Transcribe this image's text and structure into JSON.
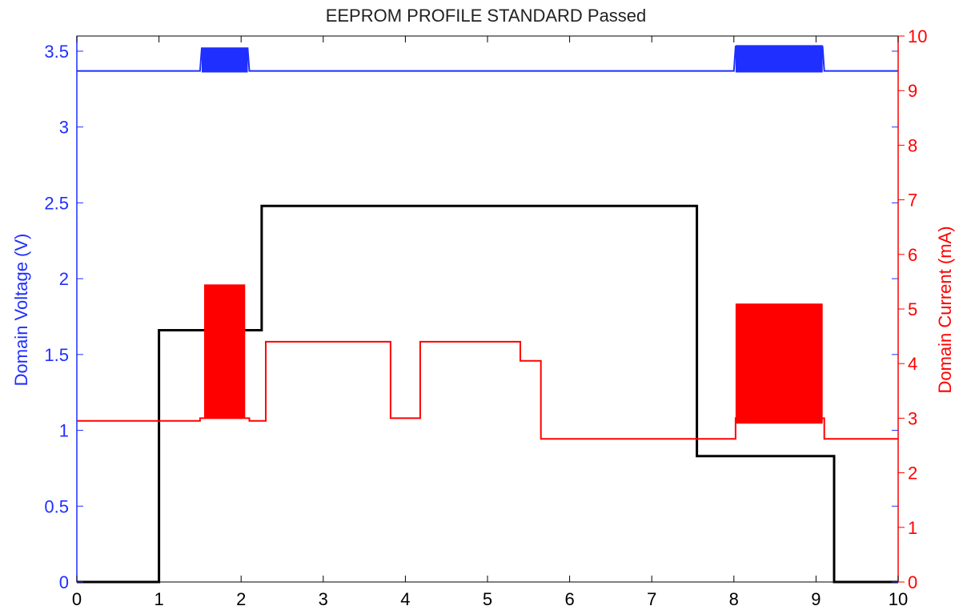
{
  "chart_data": {
    "type": "line",
    "title": "EEPROM PROFILE STANDARD Passed",
    "xlabel": "",
    "ylabel_left": "Domain Voltage (V)",
    "ylabel_right": "Domain Current (mA)",
    "xlim": [
      0,
      10
    ],
    "ylim_left": [
      0,
      3.6
    ],
    "ylim_right": [
      0,
      10
    ],
    "x_ticks": [
      "0",
      "1",
      "2",
      "3",
      "4",
      "5",
      "6",
      "7",
      "8",
      "9",
      "10"
    ],
    "y_left_ticks": [
      "0",
      "0.5",
      "1",
      "1.5",
      "2",
      "2.5",
      "3",
      "3.5"
    ],
    "y_right_ticks": [
      "0",
      "1",
      "2",
      "3",
      "4",
      "5",
      "6",
      "7",
      "8",
      "9",
      "10"
    ],
    "grid": false,
    "colors": {
      "left_axis": "#1f2fff",
      "right_axis": "#ff0000",
      "profile": "#000000",
      "frame": "#000000"
    },
    "series": [
      {
        "axis": "left",
        "color": "#1f2fff",
        "x": [
          0,
          1.5,
          1.52,
          2.08,
          2.1,
          8.0,
          8.02,
          9.08,
          9.1,
          10
        ],
        "y": [
          3.37,
          3.37,
          3.52,
          3.52,
          3.37,
          3.37,
          3.53,
          3.53,
          3.37,
          3.37
        ],
        "bursts": [
          {
            "x_start": 1.52,
            "x_end": 2.08,
            "low": 3.36,
            "high": 3.52
          },
          {
            "x_start": 8.02,
            "x_end": 9.08,
            "low": 3.36,
            "high": 3.54
          }
        ]
      },
      {
        "axis": "left",
        "color": "#000000",
        "x": [
          0,
          1.0,
          1.0,
          2.25,
          2.25,
          7.55,
          7.55,
          9.22,
          9.22,
          10
        ],
        "y": [
          0,
          0,
          1.66,
          1.66,
          2.48,
          2.48,
          0.83,
          0.83,
          0,
          0
        ]
      },
      {
        "axis": "right",
        "color": "#ff0000",
        "x": [
          0,
          1.5,
          1.5,
          2.1,
          2.1,
          2.3,
          2.3,
          3.82,
          3.82,
          4.18,
          4.18,
          5.4,
          5.4,
          5.65,
          5.65,
          8.02,
          8.02,
          9.1,
          9.1,
          10
        ],
        "y": [
          2.95,
          2.95,
          3.0,
          3.0,
          2.95,
          2.95,
          4.4,
          4.4,
          3.0,
          3.0,
          4.4,
          4.4,
          4.05,
          4.05,
          2.62,
          2.62,
          3.0,
          3.0,
          2.62,
          2.62
        ],
        "bursts": [
          {
            "x_start": 1.55,
            "x_end": 2.05,
            "low": 3.0,
            "high": 5.45
          },
          {
            "x_start": 8.02,
            "x_end": 9.08,
            "low": 2.9,
            "high": 5.1
          }
        ]
      }
    ]
  }
}
